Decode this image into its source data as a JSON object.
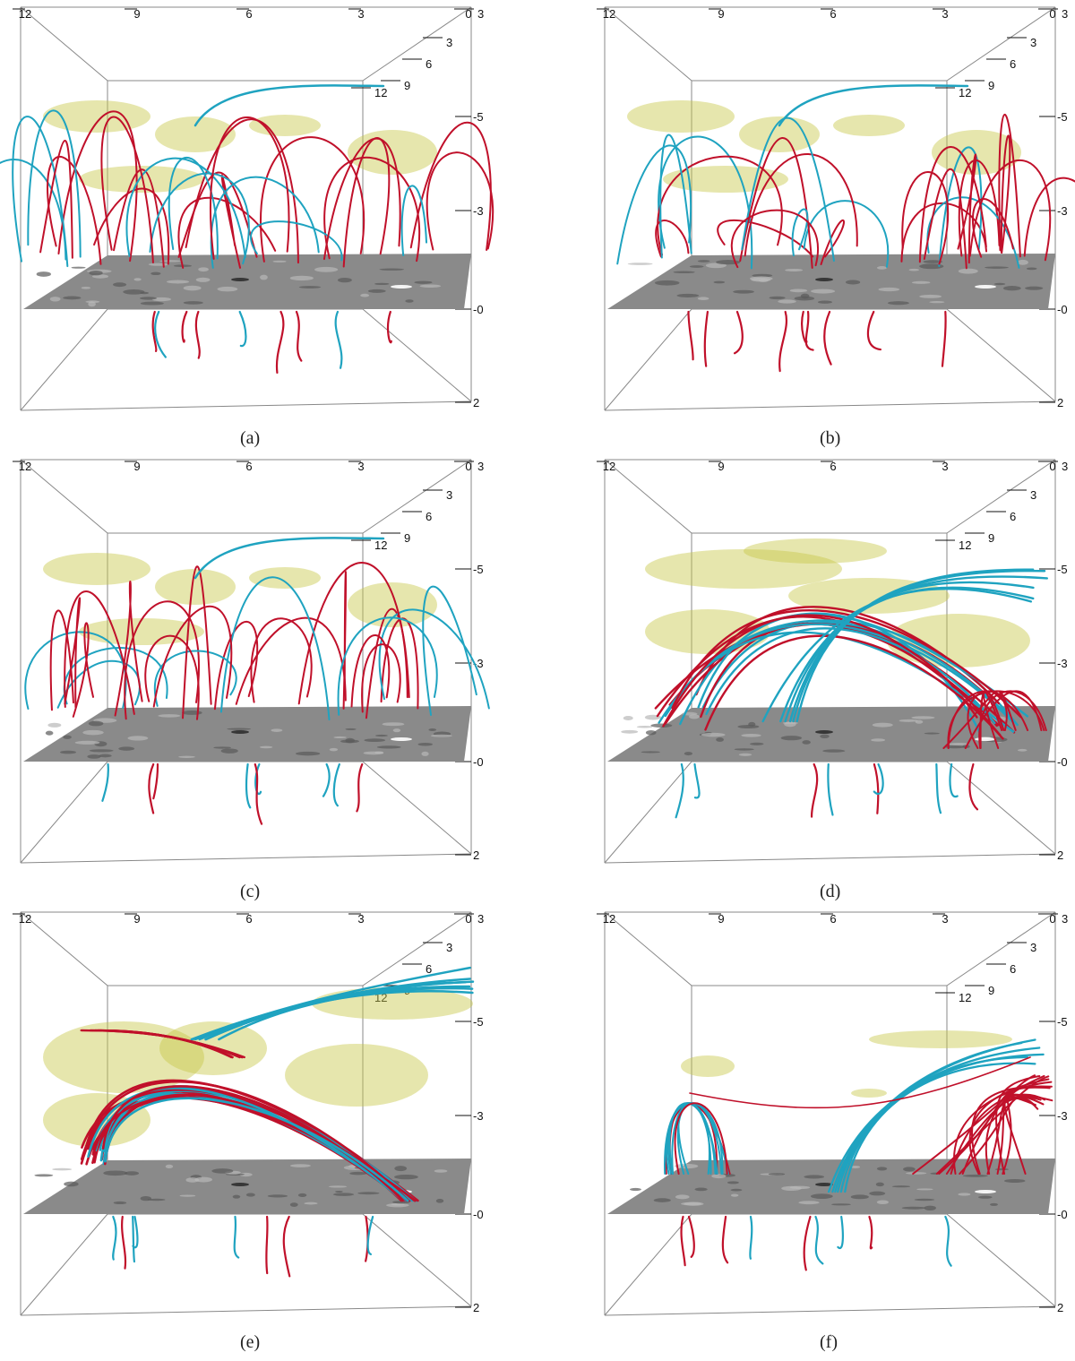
{
  "panels": [
    {
      "id": "a",
      "caption": "(a)",
      "top_ticks": [
        "12",
        "9",
        "6",
        "3",
        "0"
      ],
      "depth_ticks": [
        "3",
        "3",
        "6",
        "9",
        "12"
      ],
      "z_ticks": [
        "-5",
        "-3",
        "-0",
        "2"
      ],
      "style": "loops"
    },
    {
      "id": "b",
      "caption": "(b)",
      "top_ticks": [
        "12",
        "9",
        "6",
        "3",
        "0"
      ],
      "depth_ticks": [
        "3",
        "3",
        "6",
        "9",
        "12"
      ],
      "z_ticks": [
        "-5",
        "-3",
        "-0",
        "2"
      ],
      "style": "loops"
    },
    {
      "id": "c",
      "caption": "(c)",
      "top_ticks": [
        "12",
        "9",
        "6",
        "3",
        "0"
      ],
      "depth_ticks": [
        "3",
        "3",
        "6",
        "9",
        "12"
      ],
      "z_ticks": [
        "-5",
        "-3",
        "-0",
        "2"
      ],
      "style": "loops"
    },
    {
      "id": "d",
      "caption": "(d)",
      "top_ticks": [
        "12",
        "9",
        "6",
        "3",
        "0"
      ],
      "depth_ticks": [
        "3",
        "3",
        "6",
        "9",
        "12"
      ],
      "z_ticks": [
        "-5",
        "-3",
        "-0",
        "2"
      ],
      "style": "arcade"
    },
    {
      "id": "e",
      "caption": "(e)",
      "top_ticks": [
        "12",
        "9",
        "6",
        "3",
        "0"
      ],
      "depth_ticks": [
        "3",
        "3",
        "6",
        "9",
        "12"
      ],
      "z_ticks": [
        "-5",
        "-3",
        "-0",
        "2"
      ],
      "style": "rope"
    },
    {
      "id": "f",
      "caption": "(f)",
      "top_ticks": [
        "12",
        "9",
        "6",
        "3",
        "0"
      ],
      "depth_ticks": [
        "3",
        "3",
        "6",
        "9",
        "12"
      ],
      "z_ticks": [
        "-5",
        "-3",
        "-0",
        "2"
      ],
      "style": "split"
    }
  ],
  "colors": {
    "red_lines": "#c0102a",
    "cyan_lines": "#1fa3c0",
    "yellow_volume": "#c8c84a",
    "plane": "#8a8a8a",
    "box": "#888888"
  }
}
